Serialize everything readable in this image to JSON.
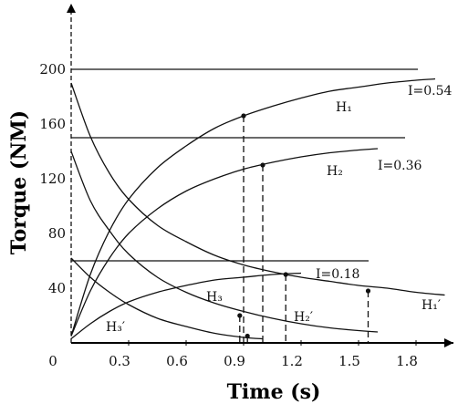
{
  "chart_data": {
    "type": "line",
    "xlabel": "Time (s)",
    "ylabel": "Torque (NM)",
    "xlim": [
      0,
      2.0
    ],
    "ylim": [
      0,
      220
    ],
    "x_ticks": [
      "0.3",
      "0.6",
      "0.9",
      "1.2",
      "1.5",
      "1.8"
    ],
    "y_ticks": [
      "40",
      "80",
      "120",
      "160",
      "200"
    ],
    "origin_label": "0",
    "grid": false,
    "current_levels": [
      {
        "label": "I=0.54",
        "y": 200
      },
      {
        "label": "I=0.36",
        "y": 150
      },
      {
        "label": "I=0.18",
        "y": 60
      }
    ],
    "series": [
      {
        "name": "H₁",
        "kind": "rise",
        "x": [
          0,
          0.1,
          0.2,
          0.3,
          0.45,
          0.6,
          0.75,
          0.9,
          1.05,
          1.2,
          1.35,
          1.5,
          1.65,
          1.8,
          1.9
        ],
        "y": [
          5,
          50,
          82,
          105,
          128,
          144,
          157,
          166,
          173,
          179,
          184,
          187,
          190,
          192,
          193
        ]
      },
      {
        "name": "H₂",
        "kind": "rise",
        "x": [
          0,
          0.1,
          0.2,
          0.3,
          0.45,
          0.6,
          0.75,
          0.9,
          1.05,
          1.2,
          1.35,
          1.5,
          1.6
        ],
        "y": [
          5,
          38,
          62,
          80,
          98,
          111,
          120,
          127,
          132,
          136,
          139,
          141,
          142
        ]
      },
      {
        "name": "H₃",
        "kind": "rise",
        "x": [
          0,
          0.1,
          0.2,
          0.3,
          0.45,
          0.6,
          0.75,
          0.9,
          1.05,
          1.2
        ],
        "y": [
          3,
          14,
          23,
          30,
          37,
          42,
          46,
          48,
          50,
          51
        ]
      },
      {
        "name": "H₁′",
        "kind": "decay",
        "x": [
          0,
          0.1,
          0.2,
          0.3,
          0.45,
          0.6,
          0.75,
          0.9,
          1.05,
          1.2,
          1.35,
          1.5,
          1.65,
          1.8,
          1.95
        ],
        "y": [
          190,
          151,
          124,
          105,
          86,
          74,
          64,
          57,
          52,
          48,
          45,
          42,
          40,
          37,
          35
        ]
      },
      {
        "name": "H₂′",
        "kind": "decay",
        "x": [
          0,
          0.1,
          0.2,
          0.3,
          0.45,
          0.6,
          0.75,
          0.9,
          1.05,
          1.2,
          1.35,
          1.5,
          1.6
        ],
        "y": [
          140,
          104,
          82,
          65,
          48,
          37,
          29,
          23,
          18,
          14,
          11,
          9,
          8
        ]
      },
      {
        "name": "H₃′",
        "kind": "decay",
        "x": [
          0,
          0.1,
          0.2,
          0.3,
          0.45,
          0.6,
          0.75,
          0.9,
          1.0
        ],
        "y": [
          62,
          48,
          37,
          28,
          18,
          12,
          7,
          4,
          3
        ]
      }
    ],
    "intersections": [
      {
        "x": 0.9,
        "y": 166
      },
      {
        "x": 1.0,
        "y": 130
      },
      {
        "x": 1.12,
        "y": 50
      },
      {
        "x": 1.55,
        "y": 38
      },
      {
        "x": 0.88,
        "y": 20
      },
      {
        "x": 0.92,
        "y": 5
      }
    ]
  }
}
